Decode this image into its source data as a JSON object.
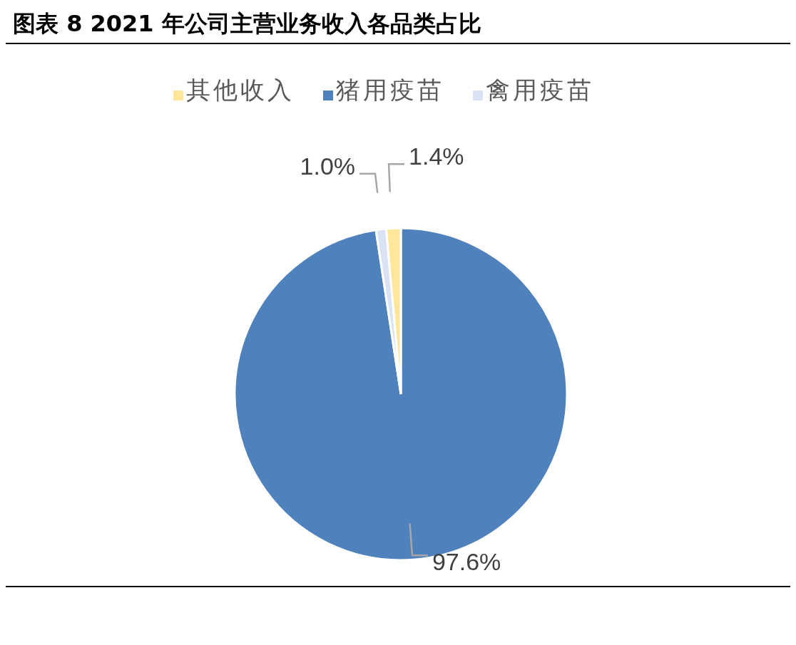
{
  "chart_data": {
    "type": "pie",
    "title": "图表 8 2021 年公司主营业务收入各品类占比",
    "categories": [
      "猪用疫苗",
      "禽用疫苗",
      "其他收入"
    ],
    "values": [
      97.6,
      1.0,
      1.4
    ],
    "colors": [
      "#4f81bd",
      "#dae3f3",
      "#ffe699"
    ],
    "value_labels": [
      "97.6%",
      "1.0%",
      "1.4%"
    ],
    "legend": "top"
  }
}
